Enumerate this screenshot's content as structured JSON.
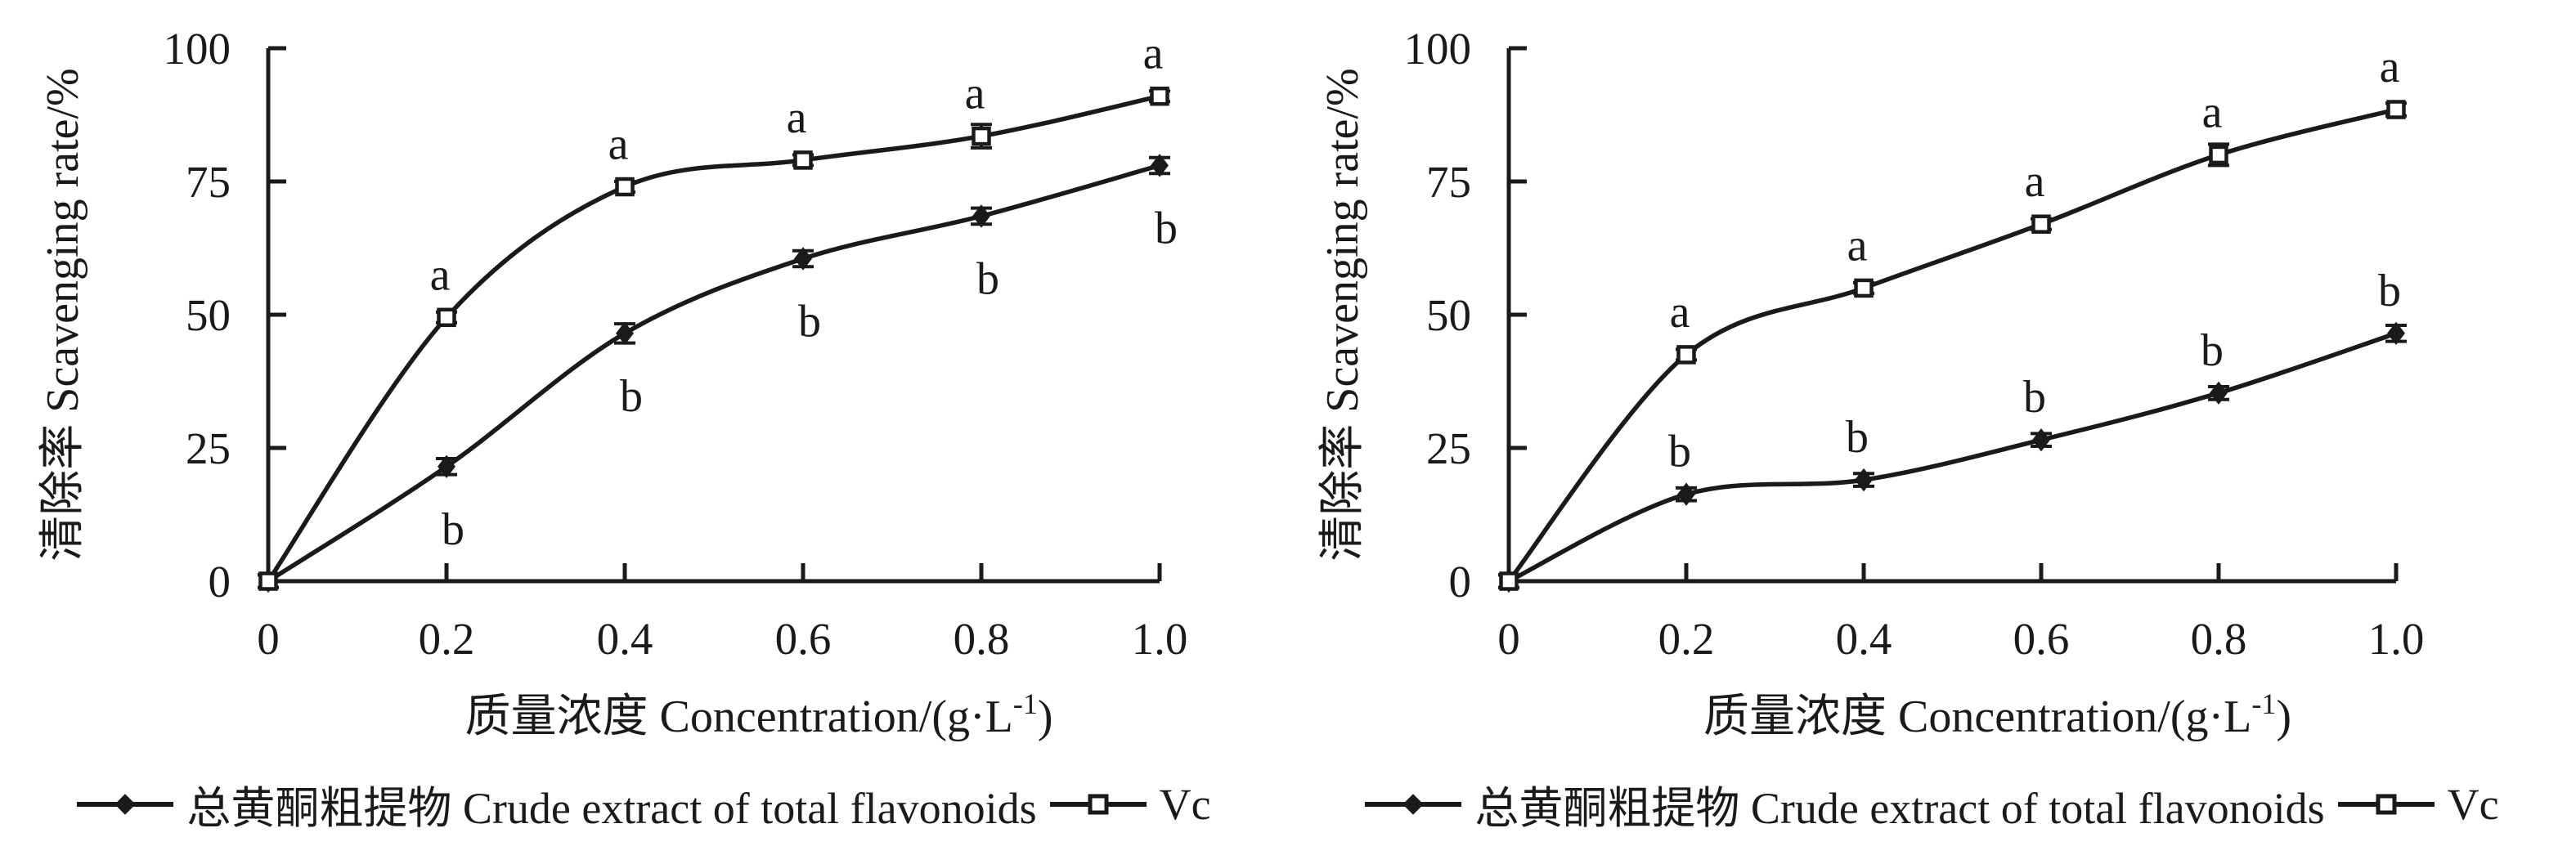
{
  "figure": {
    "background": "#ffffff",
    "ink": "#1a1a1a"
  },
  "legend": {
    "items": [
      {
        "marker": "filled-diamond",
        "label": "总黄酮粗提物 Crude extract of total flavonoids"
      },
      {
        "marker": "open-square",
        "label": "Vc"
      }
    ]
  },
  "chart_data": [
    {
      "type": "line",
      "title": "",
      "ylabel": "清除率 Scavenging rate/%",
      "xlabel_pre": "质量浓度 Concentration/(g·L",
      "xlabel_sup": "-1",
      "xlabel_post": ")",
      "x": [
        0,
        0.2,
        0.4,
        0.6,
        0.8,
        1.0
      ],
      "x_ticks": [
        "0",
        "0.2",
        "0.4",
        "0.6",
        "0.8",
        "1.0"
      ],
      "y_ticks": [
        "0",
        "25",
        "50",
        "75",
        "100"
      ],
      "xlim": [
        0,
        1.0
      ],
      "ylim": [
        0,
        100
      ],
      "grid": false,
      "legend_position": "bottom",
      "series": [
        {
          "name": "总黄酮粗提物 Crude extract of total flavonoids",
          "marker": "filled-diamond",
          "values": [
            0,
            21.5,
            46.5,
            60.5,
            68.5,
            78
          ],
          "error": [
            1.2,
            1.5,
            1.8,
            1.5,
            1.5,
            1.5
          ],
          "point_labels": [
            "",
            "b",
            "b",
            "b",
            "b",
            "b"
          ],
          "label_side": "below"
        },
        {
          "name": "Vc",
          "marker": "open-square",
          "values": [
            0,
            49.5,
            74,
            79,
            83.5,
            91
          ],
          "error": [
            1.2,
            1.0,
            1.0,
            1.0,
            2.2,
            1.0
          ],
          "point_labels": [
            "",
            "a",
            "a",
            "a",
            "a",
            "a"
          ],
          "label_side": "above"
        }
      ]
    },
    {
      "type": "line",
      "title": "",
      "ylabel": "清除率 Scavenging rate/%",
      "xlabel_pre": "质量浓度 Concentration/(g·L",
      "xlabel_sup": "-1",
      "xlabel_post": ")",
      "x": [
        0,
        0.2,
        0.4,
        0.6,
        0.8,
        1.0
      ],
      "x_ticks": [
        "0",
        "0.2",
        "0.4",
        "0.6",
        "0.8",
        "1.0"
      ],
      "y_ticks": [
        "0",
        "25",
        "50",
        "75",
        "100"
      ],
      "xlim": [
        0,
        1.0
      ],
      "ylim": [
        0,
        100
      ],
      "grid": false,
      "legend_position": "bottom",
      "series": [
        {
          "name": "总黄酮粗提物 Crude extract of total flavonoids",
          "marker": "filled-diamond",
          "values": [
            0,
            16.3,
            19,
            26.5,
            35.3,
            46.5
          ],
          "error": [
            1.2,
            1.2,
            1.2,
            1.2,
            1.2,
            1.5
          ],
          "point_labels": [
            "",
            "b",
            "b",
            "b",
            "b",
            "b"
          ],
          "label_side": "above"
        },
        {
          "name": "Vc",
          "marker": "open-square",
          "values": [
            0,
            42.5,
            55,
            67,
            80,
            88.5
          ],
          "error": [
            1.2,
            1.0,
            1.0,
            1.0,
            2.0,
            1.2
          ],
          "point_labels": [
            "",
            "a",
            "a",
            "a",
            "a",
            "a"
          ],
          "label_side": "above"
        }
      ]
    }
  ]
}
